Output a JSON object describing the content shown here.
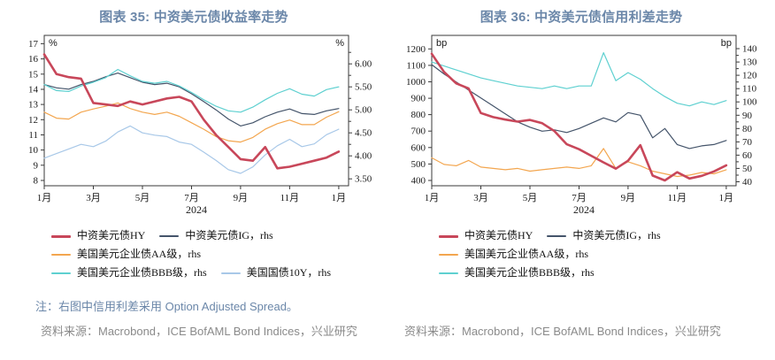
{
  "panels": [
    {
      "title": "图表 35: 中资美元债收益率走势",
      "source": "资料来源：Macrobond，ICE BofAML Bond Indices，兴业研究"
    },
    {
      "title": "图表 36: 中资美元债信用利差走势",
      "source": "资料来源：Macrobond，ICE BofAML Bond Indices，兴业研究"
    }
  ],
  "footnote": "注：右图中信用利差采用 Option Adjusted Spread。",
  "colors": {
    "title": "#6B87A9",
    "note": "#6B87A9",
    "source": "#8A8A8A",
    "axis": "#3A3A3A",
    "hy": "#C8475A",
    "ig": "#44546A",
    "aa": "#F3A64F",
    "bbb": "#5ED0D0",
    "ust10y": "#A8C8E8"
  },
  "chart_data": [
    {
      "type": "line",
      "title": "图表 35: 中资美元债收益率走势",
      "x_axis": {
        "start": 0,
        "step": 0.5,
        "domain": [
          0,
          12.4
        ],
        "tick_positions": [
          0,
          2,
          4,
          6,
          8,
          10,
          12
        ],
        "tick_labels": [
          "1月",
          "3月",
          "5月",
          "7月",
          "9月",
          "11月",
          "1月"
        ],
        "year_label": "2024"
      },
      "y_left": {
        "unit": "%",
        "domain": [
          7.65,
          17.55
        ],
        "tick_values": [
          8,
          9,
          10,
          11,
          12,
          13,
          14,
          15,
          16,
          17
        ],
        "tick_labels": [
          "8",
          "9",
          "10",
          "11",
          "12",
          "13",
          "14",
          "15",
          "16",
          "17"
        ],
        "minor_tick_values": []
      },
      "y_right": {
        "unit": "%",
        "domain": [
          3.35,
          6.62
        ],
        "tick_values": [
          3.5,
          4.0,
          4.5,
          5.0,
          5.5,
          6.0
        ],
        "tick_labels": [
          "3.50",
          "4.00",
          "4.50",
          "5.00",
          "5.50",
          "6.00"
        ],
        "minor_tick_values": [
          3.75,
          4.25,
          4.75,
          5.25,
          5.75,
          6.25
        ]
      },
      "series": [
        {
          "name": "中资美元债HY",
          "axis": "left",
          "color": "hy",
          "width": 2.6,
          "values": [
            16.3,
            15.0,
            14.8,
            14.7,
            13.1,
            13.0,
            12.9,
            13.2,
            13.0,
            13.2,
            13.4,
            13.5,
            13.2,
            12.0,
            11.0,
            10.2,
            9.4,
            9.3,
            10.2,
            8.8,
            8.9,
            9.1,
            9.3,
            9.5,
            9.9
          ]
        },
        {
          "name": "中资美元债IG，rhs",
          "axis": "right",
          "color": "ig",
          "width": 1.2,
          "values": [
            5.55,
            5.48,
            5.45,
            5.55,
            5.62,
            5.72,
            5.8,
            5.7,
            5.6,
            5.55,
            5.58,
            5.5,
            5.35,
            5.18,
            5.0,
            4.8,
            4.65,
            4.72,
            4.85,
            4.95,
            5.02,
            4.92,
            4.9,
            4.98,
            5.03
          ]
        },
        {
          "name": "美国美元企业债AA级，rhs",
          "axis": "right",
          "color": "aa",
          "width": 1.2,
          "values": [
            4.95,
            4.82,
            4.8,
            4.95,
            5.02,
            5.08,
            5.15,
            5.03,
            4.95,
            4.9,
            4.95,
            4.86,
            4.72,
            4.58,
            4.42,
            4.33,
            4.3,
            4.4,
            4.58,
            4.7,
            4.78,
            4.68,
            4.68,
            4.84,
            4.96
          ]
        },
        {
          "name": "美国美元企业债BBB级，rhs",
          "axis": "right",
          "color": "bbb",
          "width": 1.2,
          "values": [
            5.55,
            5.42,
            5.4,
            5.52,
            5.6,
            5.7,
            5.88,
            5.74,
            5.62,
            5.58,
            5.62,
            5.52,
            5.38,
            5.22,
            5.08,
            4.98,
            4.95,
            5.06,
            5.22,
            5.36,
            5.46,
            5.34,
            5.3,
            5.44,
            5.5
          ]
        },
        {
          "name": "美国国债10Y，rhs",
          "axis": "right",
          "color": "ust10y",
          "width": 1.2,
          "values": [
            3.95,
            4.05,
            4.15,
            4.25,
            4.2,
            4.32,
            4.52,
            4.65,
            4.5,
            4.45,
            4.42,
            4.3,
            4.25,
            4.08,
            3.9,
            3.7,
            3.62,
            3.76,
            4.02,
            4.22,
            4.36,
            4.2,
            4.26,
            4.46,
            4.58
          ]
        }
      ],
      "legend_rows": [
        [
          0,
          1
        ],
        [
          2
        ],
        [
          3,
          4
        ]
      ]
    },
    {
      "type": "line",
      "title": "图表 36: 中资美元债信用利差走势",
      "x_axis": {
        "start": 0,
        "step": 0.5,
        "domain": [
          0,
          12.4
        ],
        "tick_positions": [
          0,
          2,
          4,
          6,
          8,
          10,
          12
        ],
        "tick_labels": [
          "1月",
          "3月",
          "5月",
          "7月",
          "9月",
          "11月",
          "1月"
        ],
        "year_label": "2024"
      },
      "y_left": {
        "unit": "bp",
        "domain": [
          368,
          1282
        ],
        "tick_values": [
          400,
          500,
          600,
          700,
          800,
          900,
          1000,
          1100,
          1200
        ],
        "tick_labels": [
          "400",
          "500",
          "600",
          "700",
          "800",
          "900",
          "1000",
          "1100",
          "1200"
        ],
        "minor_tick_values": []
      },
      "y_right": {
        "unit": "bp",
        "domain": [
          37,
          150
        ],
        "tick_values": [
          40,
          50,
          60,
          70,
          80,
          90,
          100,
          110,
          120,
          130,
          140
        ],
        "tick_labels": [
          "40",
          "50",
          "60",
          "70",
          "80",
          "90",
          "100",
          "110",
          "120",
          "130",
          "140"
        ],
        "minor_tick_values": [
          45,
          55,
          65,
          75,
          85,
          95,
          105,
          115,
          125,
          135
        ]
      },
      "series": [
        {
          "name": "中资美元债HY",
          "axis": "left",
          "color": "hy",
          "width": 2.6,
          "values": [
            1170,
            1060,
            990,
            960,
            810,
            785,
            770,
            758,
            768,
            748,
            700,
            620,
            590,
            550,
            510,
            472,
            520,
            615,
            430,
            400,
            450,
            412,
            428,
            455,
            492
          ]
        },
        {
          "name": "中资美元债IG，rhs",
          "axis": "right",
          "color": "ig",
          "width": 1.2,
          "values": [
            128,
            121,
            115,
            109,
            103,
            97,
            91,
            85,
            81,
            78,
            79,
            77,
            80,
            84,
            88,
            85,
            92,
            90,
            73,
            80,
            68,
            65,
            67,
            68,
            71
          ]
        },
        {
          "name": "美国美元企业债AA级，rhs",
          "axis": "right",
          "color": "aa",
          "width": 1.2,
          "values": [
            58,
            53,
            52,
            56,
            51,
            50,
            49,
            50,
            48,
            49,
            50,
            51,
            50,
            52,
            65,
            50,
            55,
            52,
            48,
            46,
            44,
            45,
            47,
            46,
            49
          ]
        },
        {
          "name": "美国美元企业债BBB级，rhs",
          "axis": "right",
          "color": "bbb",
          "width": 1.2,
          "values": [
            130,
            127,
            124,
            121,
            118,
            116,
            114,
            112,
            111,
            110,
            112,
            110,
            112,
            112,
            137,
            116,
            122,
            117,
            110,
            104,
            99,
            97,
            100,
            98,
            101
          ]
        }
      ],
      "legend_rows": [
        [
          0,
          1
        ],
        [
          2
        ],
        [
          3
        ]
      ]
    }
  ]
}
